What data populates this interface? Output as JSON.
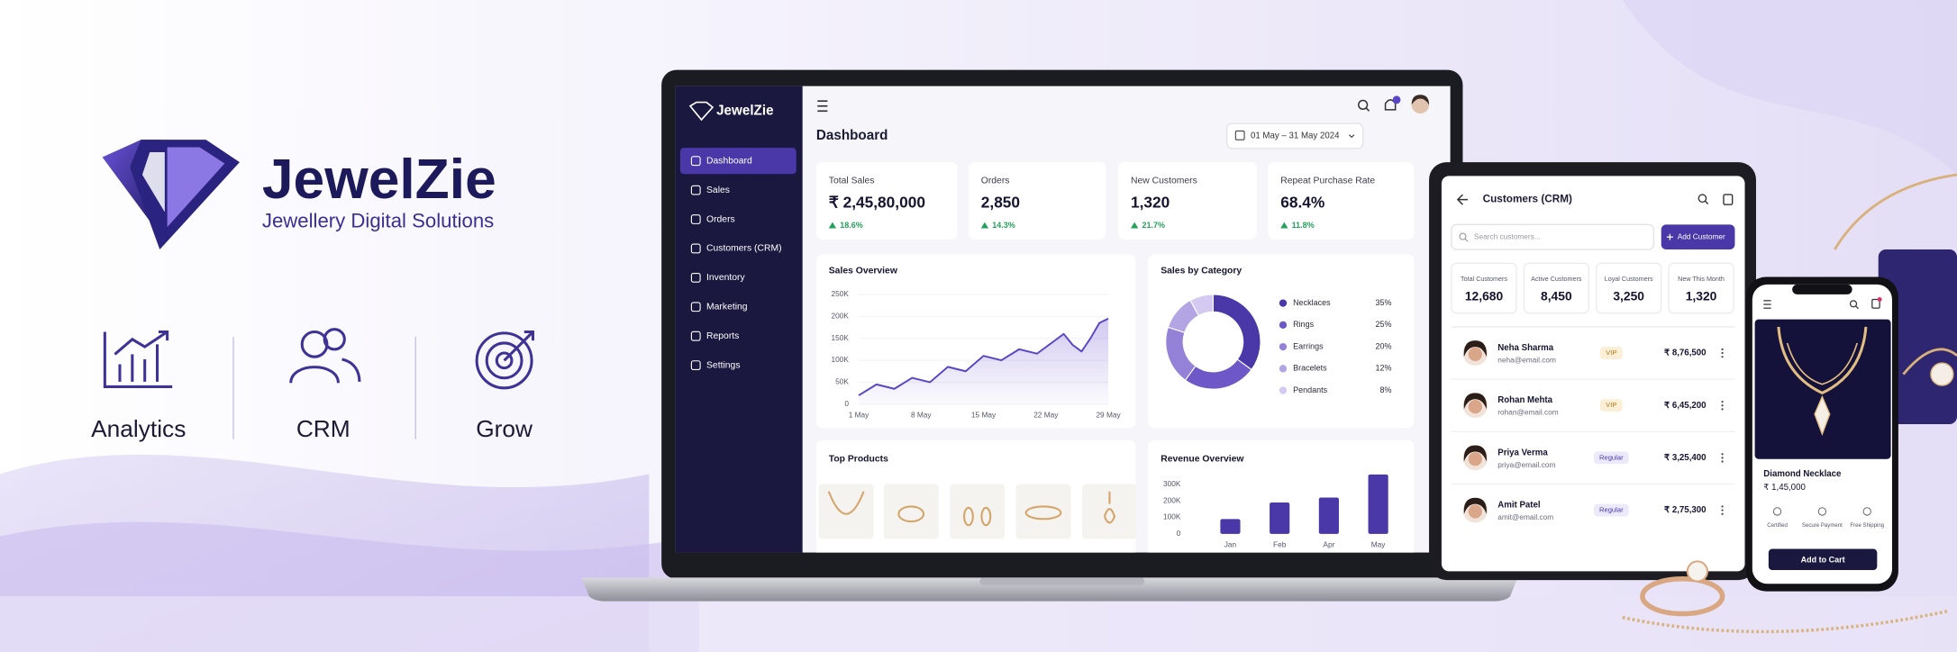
{
  "brand": {
    "name": "JewelZie",
    "tagline": "Jewellery Digital Solutions"
  },
  "features": [
    "Analytics",
    "CRM",
    "Grow"
  ],
  "dashboard": {
    "brand": "JewelZie",
    "nav": [
      "Dashboard",
      "Sales",
      "Orders",
      "Customers (CRM)",
      "Inventory",
      "Marketing",
      "Reports",
      "Settings"
    ],
    "title": "Dashboard",
    "date_range": "01 May – 31 May 2024",
    "kpis": [
      {
        "label": "Total Sales",
        "value": "₹ 2,45,80,000",
        "change": "18.6%"
      },
      {
        "label": "Orders",
        "value": "2,850",
        "change": "14.3%"
      },
      {
        "label": "New Customers",
        "value": "1,320",
        "change": "21.7%"
      },
      {
        "label": "Repeat Purchase Rate",
        "value": "68.4%",
        "change": "11.8%"
      }
    ],
    "sales_overview": {
      "type": "line",
      "title": "Sales Overview",
      "color": "#5a45c6",
      "grid": true,
      "x": [
        1,
        3,
        5,
        7,
        9,
        11,
        13,
        15,
        17,
        19,
        21,
        23,
        24,
        25,
        26,
        27,
        28,
        29
      ],
      "values": [
        20000,
        45000,
        35000,
        60000,
        50000,
        85000,
        75000,
        110000,
        100000,
        125000,
        115000,
        145000,
        160000,
        135000,
        120000,
        150000,
        185000,
        195000
      ],
      "xlim": [
        1,
        29
      ],
      "xticks": [
        {
          "value": 1,
          "label": "1 May"
        },
        {
          "value": 8,
          "label": "8 May"
        },
        {
          "value": 15,
          "label": "15 May"
        },
        {
          "value": 22,
          "label": "22 May"
        },
        {
          "value": 29,
          "label": "29 May"
        }
      ],
      "ylim": [
        0,
        250000
      ],
      "yticks": [
        0,
        {
          "value": 50000,
          "label": "50K"
        },
        {
          "value": 100000,
          "label": "100K"
        },
        {
          "value": 150000,
          "label": "150K"
        },
        {
          "value": 200000,
          "label": "200K"
        },
        {
          "value": 250000,
          "label": "250K"
        }
      ]
    },
    "sales_by_category": {
      "type": "pie",
      "title": "Sales by Category",
      "categories": [
        "Necklaces",
        "Rings",
        "Earrings",
        "Bracelets",
        "Pendants"
      ],
      "values": [
        35,
        25,
        20,
        12,
        8
      ],
      "value_labels": [
        "35%",
        "25%",
        "20%",
        "12%",
        "8%"
      ],
      "colors": [
        "#4a37a8",
        "#6e58c8",
        "#9481d8",
        "#b3a5e4",
        "#d3c9f1"
      ]
    },
    "top_products": {
      "title": "Top Products"
    },
    "revenue_overview": {
      "type": "bar",
      "title": "Revenue Overview",
      "color": "#4a37a8",
      "categories": [
        "Jan",
        "Feb",
        "Apr",
        "May"
      ],
      "values": [
        90000,
        190000,
        220000,
        360000
      ],
      "ylim": [
        0,
        370000
      ],
      "yticks": [
        0,
        {
          "value": 100000,
          "label": "100K"
        },
        {
          "value": 200000,
          "label": "200K"
        },
        {
          "value": 300000,
          "label": "300K"
        }
      ]
    }
  },
  "crm": {
    "title": "Customers (CRM)",
    "search_placeholder": "Search customers...",
    "add_button": "Add Customer",
    "stats": [
      {
        "label": "Total Customers",
        "value": "12,680"
      },
      {
        "label": "Active Customers",
        "value": "8,450"
      },
      {
        "label": "Loyal Customers",
        "value": "3,250"
      },
      {
        "label": "New This Month",
        "value": "1,320"
      }
    ],
    "rows": [
      {
        "name": "Neha Sharma",
        "email": "neha@email.com",
        "tier": "VIP",
        "amount": "₹ 8,76,500"
      },
      {
        "name": "Rohan Mehta",
        "email": "rohan@email.com",
        "tier": "VIP",
        "amount": "₹ 6,45,200"
      },
      {
        "name": "Priya Verma",
        "email": "priya@email.com",
        "tier": "Regular",
        "amount": "₹ 3,25,400"
      },
      {
        "name": "Amit Patel",
        "email": "amit@email.com",
        "tier": "Regular",
        "amount": "₹ 2,75,300"
      }
    ]
  },
  "product": {
    "name": "Diamond Necklace",
    "price": "₹ 1,45,000",
    "features": [
      "Certified",
      "Secure Payment",
      "Free Shipping"
    ],
    "button": "Add to Cart"
  }
}
